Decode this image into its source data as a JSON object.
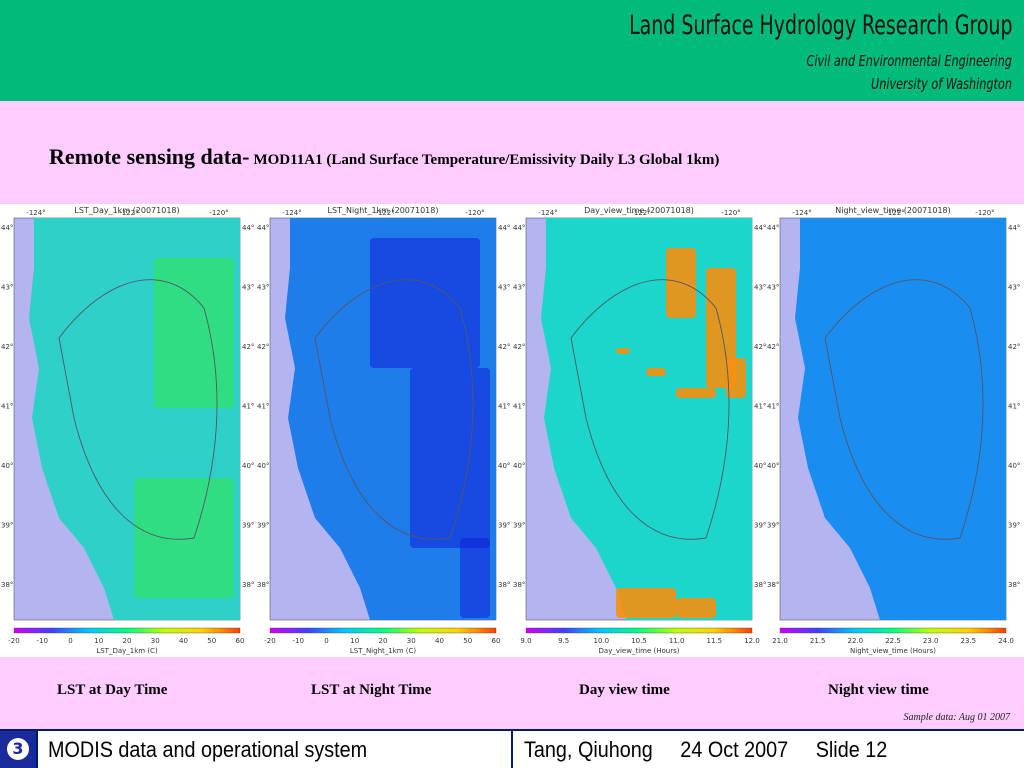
{
  "header": {
    "title": "Land Surface Hydrology Research Group",
    "line1": "Civil and Environmental Engineering",
    "line2": "University of Washington"
  },
  "slide": {
    "title_main": "Remote sensing data-",
    "title_detail": "MOD11A1 (Land Surface Temperature/Emissivity Daily L3 Global 1km)"
  },
  "panels": [
    {
      "map_title": "LST_Day_1km (20071018)",
      "lon_labels": [
        "-124°",
        "-122°",
        "-120°"
      ],
      "lat_labels": [
        "44°",
        "43°",
        "42°",
        "41°",
        "40°",
        "39°",
        "38°"
      ],
      "colorbar_ticks": [
        "-20",
        "-10",
        "0",
        "10",
        "20",
        "30",
        "40",
        "50",
        "60"
      ],
      "colorbar_label": "LST_Day_1km (C)",
      "caption": "LST at Day Time",
      "fill_color": "#2fd0c8",
      "accent_color": "#33e84a"
    },
    {
      "map_title": "LST_Night_1km (20071018)",
      "lon_labels": [
        "-124°",
        "-122°",
        "-120°"
      ],
      "lat_labels": [
        "44°",
        "43°",
        "42°",
        "41°",
        "40°",
        "39°",
        "38°"
      ],
      "colorbar_ticks": [
        "-20",
        "-10",
        "0",
        "10",
        "20",
        "30",
        "40",
        "50",
        "60"
      ],
      "colorbar_label": "LST_Night_1km (C)",
      "caption": "LST at Night Time",
      "fill_color": "#1e7de8",
      "accent_color": "#1020d8"
    },
    {
      "map_title": "Day_view_time (20071018)",
      "lon_labels": [
        "-124°",
        "-122°",
        "-120°"
      ],
      "lat_labels": [
        "44°",
        "43°",
        "42°",
        "41°",
        "40°",
        "39°",
        "38°"
      ],
      "colorbar_ticks": [
        "9.0",
        "9.5",
        "10.0",
        "10.5",
        "11.0",
        "11.5",
        "12.0"
      ],
      "colorbar_label": "Day_view_time (Hours)",
      "caption": "Day view time",
      "fill_color": "#1cd6cc",
      "accent_color": "#f59010"
    },
    {
      "map_title": "Night_view_time (20071018)",
      "lon_labels": [
        "-124°",
        "-122°",
        "-120°"
      ],
      "lat_labels": [
        "44°",
        "43°",
        "42°",
        "41°",
        "40°",
        "39°",
        "38°"
      ],
      "colorbar_ticks": [
        "21.0",
        "21.5",
        "22.0",
        "22.5",
        "23.0",
        "23.5",
        "24.0"
      ],
      "colorbar_label": "Night_view_time (Hours)",
      "caption": "Night view time",
      "fill_color": "#1a8ef0",
      "accent_color": "#1a8ef0"
    }
  ],
  "sample_note": "Sample data: Aug 01 2007",
  "footer": {
    "slide_badge": "3",
    "left_text": "MODIS data and operational system",
    "author": "Tang, Qiuhong",
    "date": "24 Oct 2007",
    "slide_label": "Slide 12"
  },
  "colors": {
    "header_bg": "#00bb7a",
    "slide_bg": "#ffccff",
    "ocean": "#b4b4f0",
    "footer_border": "#001b6a"
  }
}
